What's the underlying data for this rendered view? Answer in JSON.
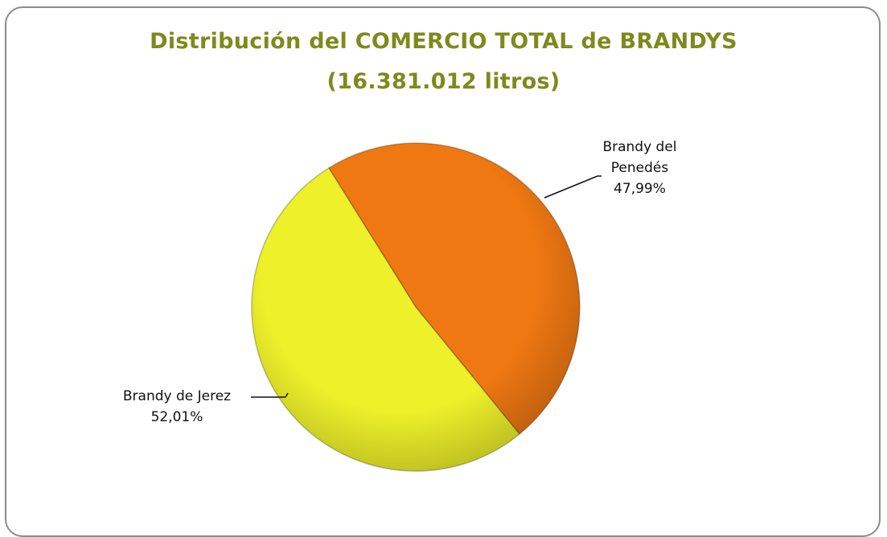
{
  "chart_data": {
    "type": "pie",
    "title": "Distribución del COMERCIO TOTAL de BRANDYS",
    "subtitle": "(16.381.012 litros)",
    "categories": [
      "Brandy del Penedés",
      "Brandy de Jerez"
    ],
    "values": [
      47.99,
      52.01
    ],
    "value_labels": [
      "47,99%",
      "52,01%"
    ],
    "colors": [
      "#f07812",
      "#eef02a"
    ]
  }
}
